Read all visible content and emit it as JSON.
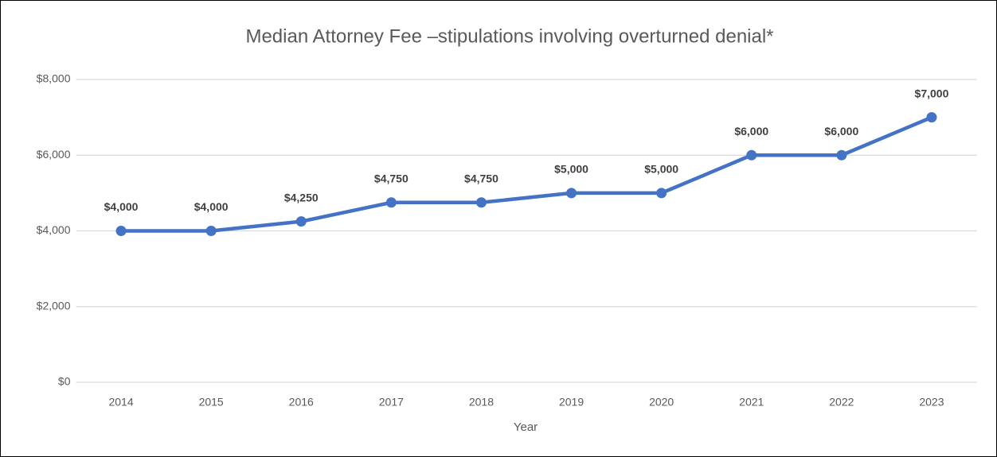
{
  "chart_data": {
    "type": "line",
    "title": "Median Attorney Fee –stipulations involving overturned denial*",
    "x_label": "Year",
    "categories": [
      "2014",
      "2015",
      "2016",
      "2017",
      "2018",
      "2019",
      "2020",
      "2021",
      "2022",
      "2023"
    ],
    "series": [
      {
        "name": "Median Attorney Fee",
        "color": "#4472c4",
        "values": [
          4000,
          4000,
          4250,
          4750,
          4750,
          5000,
          5000,
          6000,
          6000,
          7000
        ],
        "value_labels": [
          "$4,000",
          "$4,000",
          "$4,250",
          "$4,750",
          "$4,750",
          "$5,000",
          "$5,000",
          "$6,000",
          "$6,000",
          "$7,000"
        ]
      }
    ],
    "ylim": [
      0,
      8000
    ],
    "yticks": [
      {
        "value": 0,
        "label": "$0"
      },
      {
        "value": 2000,
        "label": "$2,000"
      },
      {
        "value": 4000,
        "label": "$4,000"
      },
      {
        "value": 6000,
        "label": "$6,000"
      },
      {
        "value": 8000,
        "label": "$8,000"
      }
    ],
    "grid": true
  }
}
